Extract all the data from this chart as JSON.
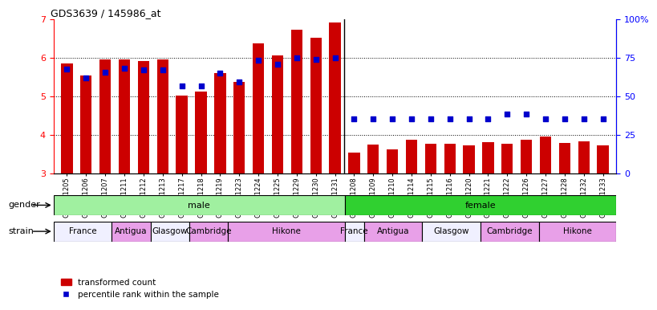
{
  "title": "GDS3639 / 145986_at",
  "samples_male": [
    "GSM231205",
    "GSM231206",
    "GSM231207",
    "GSM231211",
    "GSM231212",
    "GSM231213",
    "GSM231217",
    "GSM231218",
    "GSM231219",
    "GSM231223",
    "GSM231224",
    "GSM231225",
    "GSM231229",
    "GSM231230",
    "GSM231231"
  ],
  "samples_female": [
    "GSM231208",
    "GSM231209",
    "GSM231210",
    "GSM231214",
    "GSM231215",
    "GSM231216",
    "GSM231220",
    "GSM231221",
    "GSM231222",
    "GSM231226",
    "GSM231227",
    "GSM231228",
    "GSM231232",
    "GSM231233"
  ],
  "red_values_male": [
    5.85,
    5.55,
    5.97,
    5.95,
    5.92,
    5.97,
    5.03,
    5.12,
    5.6,
    5.38,
    6.37,
    6.07,
    6.73,
    6.53,
    6.92
  ],
  "red_values_female": [
    3.55,
    3.75,
    3.63,
    3.88,
    3.78,
    3.78,
    3.73,
    3.82,
    3.78,
    3.87,
    3.95,
    3.8,
    3.83,
    3.73
  ],
  "blue_values_male": [
    5.7,
    5.48,
    5.63,
    5.73,
    5.68,
    5.68,
    5.28,
    5.28,
    5.6,
    5.38,
    5.93,
    5.83,
    6.0,
    5.97,
    6.0
  ],
  "blue_values_female": [
    4.42,
    4.42,
    4.42,
    4.42,
    4.42,
    4.42,
    4.42,
    4.42,
    4.55,
    4.55,
    4.42,
    4.42,
    4.42,
    4.42
  ],
  "strain_male": [
    [
      "France",
      3
    ],
    [
      "Antigua",
      2
    ],
    [
      "Glasgow",
      2
    ],
    [
      "Cambridge",
      2
    ],
    [
      "Hikone",
      6
    ]
  ],
  "strain_female": [
    [
      "France",
      1
    ],
    [
      "Antigua",
      3
    ],
    [
      "Glasgow",
      3
    ],
    [
      "Cambridge",
      3
    ],
    [
      "Hikone",
      4
    ]
  ],
  "strain_colors": [
    "#f0f0ff",
    "#e8a0e8",
    "#f0f0ff",
    "#e8a0e8",
    "#e8a0e8"
  ],
  "gender_male_color": "#a0f0a0",
  "gender_female_color": "#30d030",
  "ylim_left": [
    3,
    7
  ],
  "ylim_right": [
    0,
    100
  ],
  "yticks_left": [
    3,
    4,
    5,
    6,
    7
  ],
  "yticks_right": [
    0,
    25,
    50,
    75,
    100
  ],
  "bar_color": "#cc0000",
  "dot_color": "#0000cc",
  "bar_width": 0.6,
  "dot_size": 20
}
